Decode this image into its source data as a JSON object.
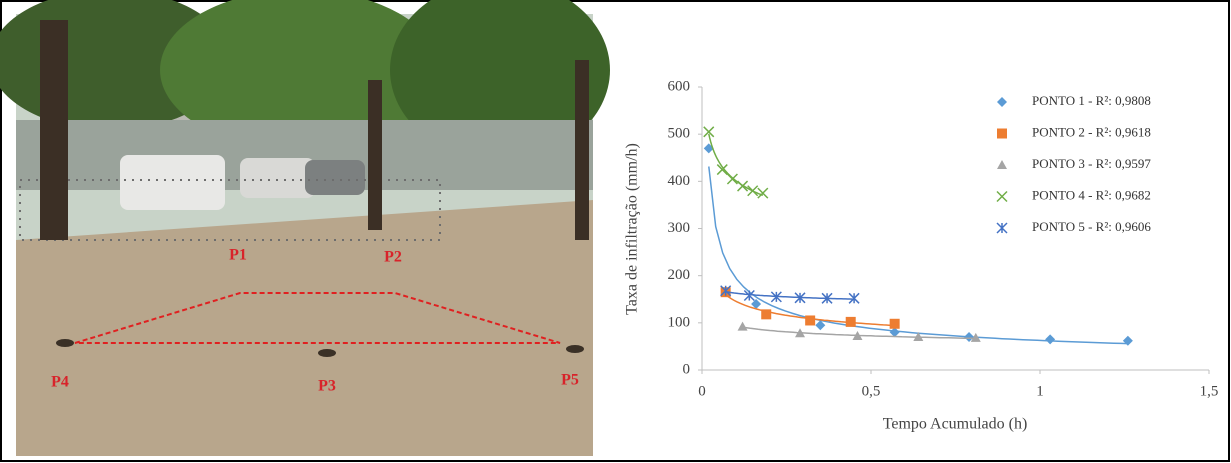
{
  "photo": {
    "labels": [
      "P1",
      "P2",
      "P3",
      "P4",
      "P5"
    ]
  },
  "chart_data": {
    "type": "scatter",
    "x_label": "Tempo Acumulado (h)",
    "y_label": "Taxa de infiltração (mm/h)",
    "xlim": [
      0,
      1.5
    ],
    "xticks": [
      0,
      {
        "value": 0.5,
        "label": "0,5"
      },
      1,
      {
        "value": 1.5,
        "label": "1,5"
      }
    ],
    "ylim": [
      0,
      600
    ],
    "yticks": [
      0,
      100,
      200,
      300,
      400,
      500,
      600
    ],
    "trendline": "power",
    "series": [
      {
        "name": "PONTO 1 - R²: 0,9808",
        "color": "#5b9bd5",
        "marker": "diamond",
        "x": [
          0.02,
          0.16,
          0.35,
          0.57,
          0.79,
          1.03,
          1.26
        ],
        "values": [
          470,
          140,
          95,
          80,
          70,
          65,
          62
        ]
      },
      {
        "name": "PONTO 2 - R²: 0,9618",
        "color": "#ed7d31",
        "marker": "square",
        "x": [
          0.07,
          0.19,
          0.32,
          0.44,
          0.57
        ],
        "values": [
          165,
          118,
          105,
          102,
          98
        ]
      },
      {
        "name": "PONTO 3 - R²: 0,9597",
        "color": "#a5a5a5",
        "marker": "triangle",
        "x": [
          0.12,
          0.29,
          0.46,
          0.64,
          0.81
        ],
        "values": [
          92,
          78,
          72,
          70,
          68
        ]
      },
      {
        "name": "PONTO 4 - R²: 0,9682",
        "color": "#70ad47",
        "marker": "x",
        "x": [
          0.02,
          0.06,
          0.09,
          0.12,
          0.15,
          0.18
        ],
        "values": [
          505,
          425,
          405,
          390,
          380,
          375
        ]
      },
      {
        "name": "PONTO 5 - R²: 0,9606",
        "color": "#4472c4",
        "marker": "star",
        "x": [
          0.07,
          0.14,
          0.22,
          0.29,
          0.37,
          0.45
        ],
        "values": [
          168,
          158,
          155,
          153,
          152,
          152
        ]
      }
    ]
  }
}
